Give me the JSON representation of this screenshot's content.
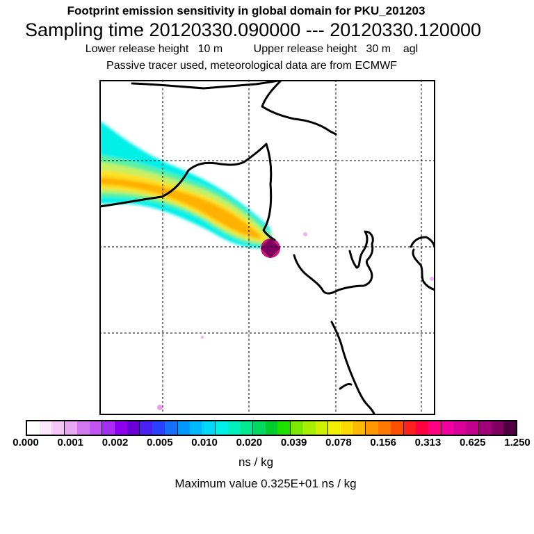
{
  "header": {
    "title": "Footprint emission sensitivity in global domain for PKU_201203",
    "sampling": "Sampling time   20120330.090000 --- 20120330.120000",
    "release": "Lower release height   10 m          Upper release height   30 m    agl",
    "tracer": "Passive tracer used, meteorological data are from ECMWF"
  },
  "colorbar": {
    "colors": [
      "#ffffff",
      "#fbe6fb",
      "#f4c8f6",
      "#eaa7f1",
      "#d278f0",
      "#c055f2",
      "#a52df4",
      "#8c00ef",
      "#6a00d8",
      "#4a20f0",
      "#2a40ff",
      "#1670ff",
      "#0098ff",
      "#00b8ff",
      "#00d8f8",
      "#00f0e8",
      "#00f0c0",
      "#00e890",
      "#00d860",
      "#00cc30",
      "#20e000",
      "#7ce800",
      "#a8ee00",
      "#d0f000",
      "#f0f000",
      "#ffd800",
      "#ffb800",
      "#ff9800",
      "#ff7800",
      "#ff5000",
      "#ff2020",
      "#ff0040",
      "#ff0080",
      "#f000a0",
      "#d80098",
      "#c0008c",
      "#a00078",
      "#800060",
      "#500040"
    ],
    "tick_labels": [
      "0.000",
      "0.001",
      "0.002",
      "0.005",
      "0.010",
      "0.020",
      "0.039",
      "0.078",
      "0.156",
      "0.313",
      "0.625",
      "1.250"
    ],
    "units": "ns / kg",
    "max_value": "Maximum value  0.325E+01 ns / kg"
  },
  "map": {
    "plume_colors": [
      "#00f0e8",
      "#5cf0a0",
      "#c8f060",
      "#ffe020",
      "#ffb000"
    ],
    "receptor_color": "#c0006a"
  }
}
